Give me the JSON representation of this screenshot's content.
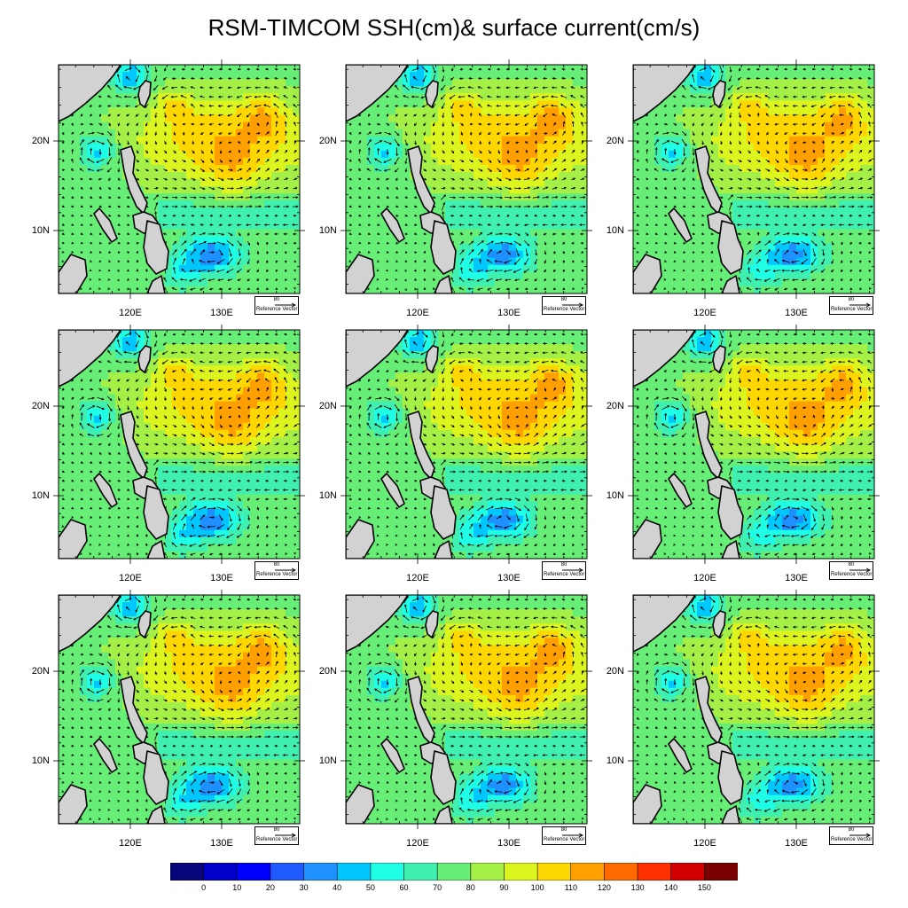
{
  "title": "RSM-TIMCOM SSH(cm)& surface current(cm/s)",
  "map_labels": {
    "lat_ticks": [
      "20N",
      "10N"
    ],
    "lon_ticks": [
      "120E",
      "130E"
    ]
  },
  "reference_vector": {
    "magnitude": "80",
    "label": "Reference Vector"
  },
  "panel_count": 9,
  "layout": "3x3 grid",
  "colorbar": {
    "labels": [
      "0",
      "10",
      "20",
      "30",
      "40",
      "50",
      "60",
      "70",
      "80",
      "90",
      "100",
      "110",
      "120",
      "130",
      "140",
      "150"
    ],
    "colors": [
      "#06067a",
      "#0000c8",
      "#0000ff",
      "#1f5aff",
      "#1e90ff",
      "#00c8ff",
      "#1effe6",
      "#40f0b0",
      "#66ee77",
      "#a4f046",
      "#dcf51e",
      "#ffd700",
      "#ffa000",
      "#ff6a00",
      "#ff3000",
      "#d20000",
      "#780000"
    ]
  },
  "colors": {
    "land": "#d2d2d2",
    "coastline": "#000000",
    "vector": "#000000"
  }
}
